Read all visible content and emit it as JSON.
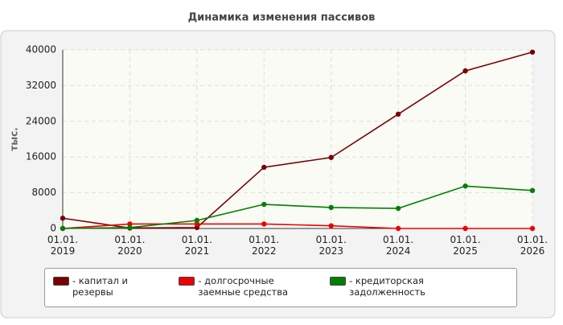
{
  "chart_data": {
    "type": "line",
    "title": "Динамика изменения пассивов",
    "y_label": "тыс.",
    "categories": [
      "01.01.\n2019",
      "01.01.\n2020",
      "01.01.\n2021",
      "01.01.\n2022",
      "01.01.\n2023",
      "01.01.\n2024",
      "01.01.\n2025",
      "01.01.\n2026"
    ],
    "series": [
      {
        "name": "- капитал и резервы",
        "color": "#7a0000",
        "values": [
          2300,
          100,
          200,
          13700,
          15900,
          25600,
          35300,
          39500
        ]
      },
      {
        "name": "- долгосрочные заемные средства",
        "color": "#ee0000",
        "values": [
          0,
          1000,
          1000,
          1000,
          600,
          0,
          0,
          0
        ]
      },
      {
        "name": "- кредиторская задолженность",
        "color": "#008000",
        "values": [
          0,
          200,
          1800,
          5400,
          4700,
          4500,
          9500,
          8500
        ]
      }
    ],
    "ylim": [
      0,
      40000
    ],
    "yticks": [
      0,
      8000,
      16000,
      24000,
      32000,
      40000
    ],
    "grid": true
  }
}
